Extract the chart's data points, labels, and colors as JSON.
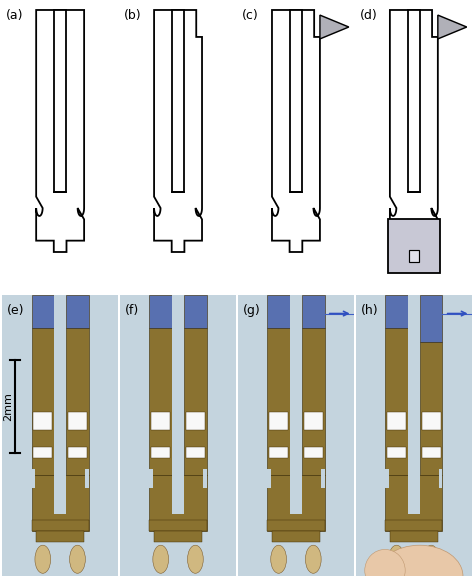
{
  "figure_width": 4.74,
  "figure_height": 5.79,
  "dpi": 100,
  "bg": "#ffffff",
  "panel_labels": [
    "(a)",
    "(b)",
    "(c)",
    "(d)",
    "(e)",
    "(f)",
    "(g)",
    "(h)"
  ],
  "label_fontsize": 9,
  "scale_bar_text": "2mm",
  "lc": "#000000",
  "lw": 1.3,
  "photo_bg": "#c8d8e0",
  "gold": "#8a7030",
  "dark_gold": "#4a3810",
  "blue_tine": "#6070b8",
  "waist_notch_fill": "#ffffff"
}
